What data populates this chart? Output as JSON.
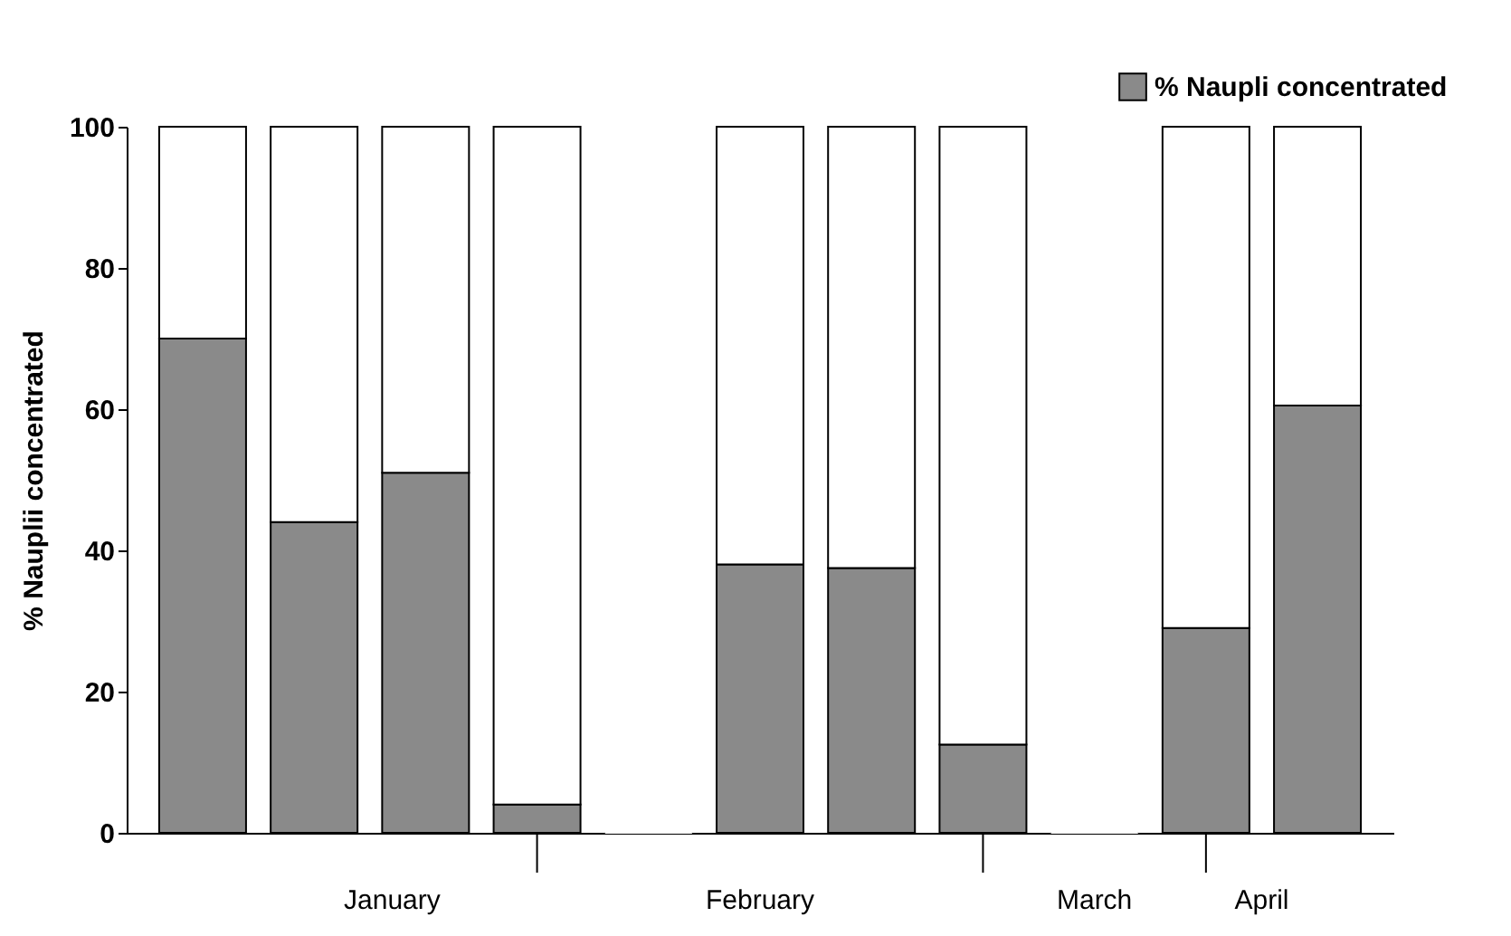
{
  "chart_data": {
    "type": "bar",
    "stacked": true,
    "ylabel": "% Nauplii concentrated",
    "categories": [
      null,
      null,
      null,
      null,
      null,
      null,
      null,
      null,
      null,
      null,
      null
    ],
    "series": [
      {
        "name": "% Naupli concentrated",
        "color": "#8a8a8a",
        "values": [
          70,
          44,
          51,
          4,
          0,
          38,
          37.5,
          12.5,
          0,
          29,
          60.5
        ]
      },
      {
        "color": "#ffffff",
        "values": [
          30,
          56,
          49,
          96,
          0,
          62,
          62.5,
          87.5,
          0,
          71,
          39.5
        ]
      }
    ],
    "ylim": [
      0,
      100
    ],
    "yticks": [
      0,
      20,
      40,
      60,
      80,
      100
    ],
    "grid": false,
    "legend": "top right",
    "annotations": [
      "January",
      "February",
      "March",
      "April"
    ]
  }
}
